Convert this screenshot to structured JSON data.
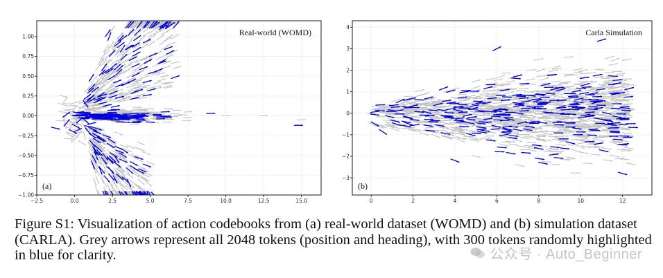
{
  "caption": "Figure S1: Visualization of action codebooks from (a) real-world dataset (WOMD) and (b) simulation dataset (CARLA). Grey arrows represent all 2048 tokens (position and heading), with 300 tokens randomly highlighted in blue for clarity.",
  "watermark": "公众号 · Auto_Beginner",
  "colors": {
    "all_tokens": "#c4c4c4",
    "highlighted": "#0000dd",
    "grid": "#e3e3e3"
  },
  "chart_data": [
    {
      "type": "scatter",
      "panel_label": "(a)",
      "title": "Real-world (WOMD)",
      "xlim": [
        -2.5,
        16.3
      ],
      "ylim": [
        -1.0,
        1.2
      ],
      "xticks": [
        "−2.5",
        "0.0",
        "2.5",
        "5.0",
        "7.5",
        "10.0",
        "12.5",
        "15.0"
      ],
      "yticks": [
        "1.00",
        "0.75",
        "0.50",
        "0.25",
        "0.00",
        "−0.25",
        "−0.50",
        "−0.75",
        "−1.00"
      ],
      "grid": true,
      "marker": "arrow",
      "series": [
        {
          "count": 2048,
          "color": "grey",
          "values": [
            [
              0.0,
              0.0,
              0.0
            ],
            [
              2.5,
              0.8,
              0.9
            ],
            [
              3.5,
              -0.7,
              -1.0
            ],
            [
              5.0,
              0.35,
              0.3
            ],
            [
              7.5,
              0.05,
              0.05
            ],
            [
              10.0,
              0.0,
              0.0
            ],
            [
              12.5,
              0.0,
              0.0
            ],
            [
              15.0,
              -0.05,
              0.0
            ]
          ]
        },
        {
          "count": 300,
          "color": "blue",
          "values": [
            [
              2.3,
              1.0,
              1.2
            ],
            [
              3.0,
              0.6,
              0.8
            ],
            [
              4.0,
              0.3,
              0.35
            ],
            [
              2.8,
              -0.55,
              -1.0
            ],
            [
              3.6,
              -0.85,
              -1.1
            ],
            [
              6.0,
              0.05,
              0.05
            ],
            [
              9.0,
              0.03,
              0.0
            ],
            [
              14.8,
              -0.12,
              0.0
            ]
          ]
        }
      ]
    },
    {
      "type": "scatter",
      "panel_label": "(b)",
      "title": "Carla Simulation",
      "xlim": [
        -0.9,
        13.4
      ],
      "ylim": [
        -3.8,
        4.3
      ],
      "xticks": [
        "0",
        "2",
        "4",
        "6",
        "8",
        "10",
        "12"
      ],
      "yticks": [
        "4",
        "3",
        "2",
        "1",
        "0",
        "−1",
        "−2",
        "−3"
      ],
      "grid": true,
      "marker": "arrow",
      "series": [
        {
          "count": 2048,
          "color": "grey",
          "values": [
            [
              0.0,
              0.0,
              0.0
            ],
            [
              5.0,
              1.5,
              0.3
            ],
            [
              8.0,
              2.5,
              0.2
            ],
            [
              5.0,
              -2.0,
              -0.3
            ],
            [
              10.0,
              0.0,
              0.0
            ],
            [
              12.0,
              1.5,
              0.2
            ]
          ]
        },
        {
          "count": 300,
          "color": "blue",
          "values": [
            [
              6.0,
              3.0,
              0.5
            ],
            [
              11.0,
              3.4,
              0.3
            ],
            [
              4.0,
              -2.2,
              -0.4
            ],
            [
              9.0,
              0.0,
              0.0
            ],
            [
              12.0,
              -2.8,
              -0.3
            ]
          ]
        }
      ]
    }
  ]
}
